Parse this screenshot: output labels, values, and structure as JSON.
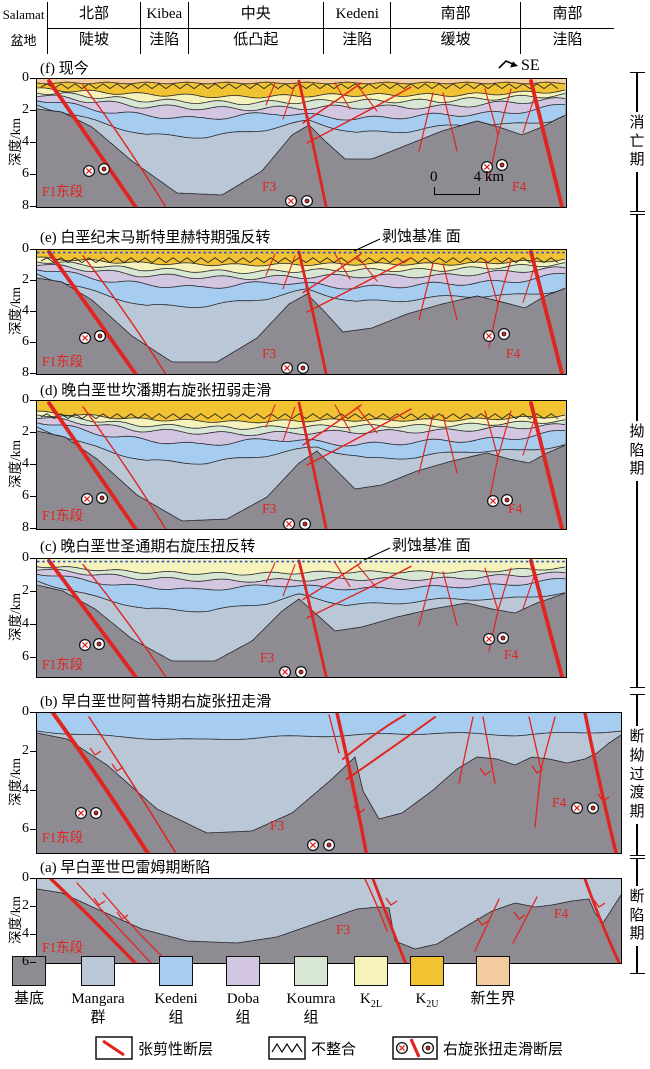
{
  "header": {
    "basin": {
      "line1": "Salamat",
      "line2": "盆地"
    },
    "zones": [
      {
        "line1": "北部",
        "line2": "陡坡"
      },
      {
        "line1": "Kibea",
        "line2": "洼陷"
      },
      {
        "line1": "中央",
        "line2": "低凸起"
      },
      {
        "line1": "Kedeni",
        "line2": "洼陷"
      },
      {
        "line1": "南部",
        "line2": "缓坡"
      },
      {
        "line1": "南部",
        "line2": "洼陷"
      }
    ]
  },
  "axis_label": "深度/km",
  "se_label": "SE",
  "fault_labels": {
    "f1": "F1东段",
    "f3": "F3",
    "f4": "F4"
  },
  "scalebar": {
    "zero": "0",
    "four": "4 km"
  },
  "panels": [
    {
      "key": "f",
      "label": "(f) 现今",
      "ticks": [
        "0",
        "2",
        "4",
        "6",
        "8"
      ]
    },
    {
      "key": "e",
      "label": "(e) 白垩纪末马斯特里赫特期强反转",
      "annotation": "剥蚀基准 面",
      "ticks": [
        "0",
        "2",
        "4",
        "6",
        "8"
      ]
    },
    {
      "key": "d",
      "label": "(d) 晚白垩世坎潘期右旋张扭弱走滑",
      "ticks": [
        "0",
        "2",
        "4",
        "6",
        "8"
      ]
    },
    {
      "key": "c",
      "label": "(c) 晚白垩世圣通期右旋压扭反转",
      "annotation": "剥蚀基准 面",
      "ticks": [
        "0",
        "2",
        "4",
        "6"
      ]
    },
    {
      "key": "b",
      "label": "(b) 早白垩世阿普特期右旋张扭走滑",
      "ticks": [
        "0",
        "2",
        "4",
        "6"
      ]
    },
    {
      "key": "a",
      "label": "(a) 早白垩世巴雷姆期断陷",
      "ticks": [
        "0",
        "2",
        "4",
        "6"
      ]
    }
  ],
  "periods": [
    {
      "label": "消亡期"
    },
    {
      "label": "拗陷期"
    },
    {
      "label": "断拗过渡期"
    },
    {
      "label": "断陷期"
    }
  ],
  "legend": {
    "units": [
      {
        "name": "基底",
        "color": "#8F8B92"
      },
      {
        "name": "Mangara",
        "name2": "群",
        "color": "#BAC7D7"
      },
      {
        "name": "Kedeni",
        "name2": "组",
        "color": "#A6CCF0"
      },
      {
        "name": "Doba",
        "name2": "组",
        "color": "#D2C6E0"
      },
      {
        "name": "Koumra",
        "name2": "组",
        "color": "#D7E7D4"
      },
      {
        "name": "K",
        "sub": "2L",
        "color": "#F5F2BB"
      },
      {
        "name": "K",
        "sub": "2U",
        "color": "#F1C332"
      },
      {
        "name": "新生界",
        "color": "#F3CBA1"
      }
    ],
    "symbols": [
      {
        "label": "张剪性断层",
        "type": "extensional-shear-fault"
      },
      {
        "label": "不整合",
        "type": "unconformity"
      },
      {
        "label": "右旋张扭走滑断层",
        "type": "dextral-transtensional-strike-slip-fault"
      }
    ]
  },
  "colors": {
    "fault": "#E02420",
    "horizon": "#26262A",
    "erosion_line": "#2B50C8"
  }
}
